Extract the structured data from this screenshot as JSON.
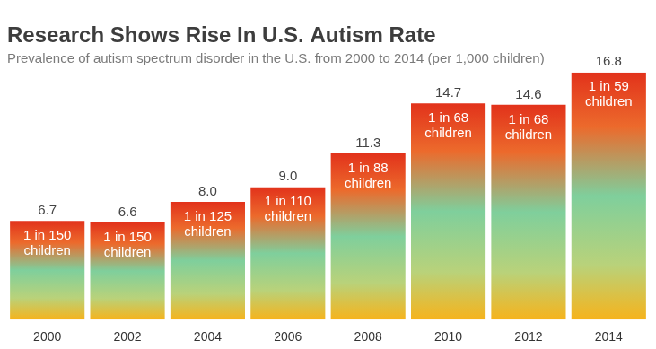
{
  "chart_data": {
    "type": "bar",
    "title": "Research Shows Rise In U.S. Autism Rate",
    "subtitle": "Prevalence of autism spectrum disorder in the U.S. from 2000 to 2014 (per 1,000 children)",
    "categories": [
      "2000",
      "2002",
      "2004",
      "2006",
      "2008",
      "2010",
      "2012",
      "2014"
    ],
    "values": [
      6.7,
      6.6,
      8.0,
      9.0,
      11.3,
      14.7,
      14.6,
      16.8
    ],
    "value_labels": [
      "6.7",
      "6.6",
      "8.0",
      "9.0",
      "11.3",
      "14.7",
      "14.6",
      "16.8"
    ],
    "annotations": [
      "1 in 150 children",
      "1 in 150 children",
      "1 in 125 children",
      "1 in 110 children",
      "1 in 88 children",
      "1 in 68 children",
      "1 in 68 children",
      "1 in 59 children"
    ],
    "color": "#e2321b",
    "ylim": [
      0,
      16.8
    ],
    "grid": false,
    "data_labels": true,
    "tick_labels": "x"
  }
}
